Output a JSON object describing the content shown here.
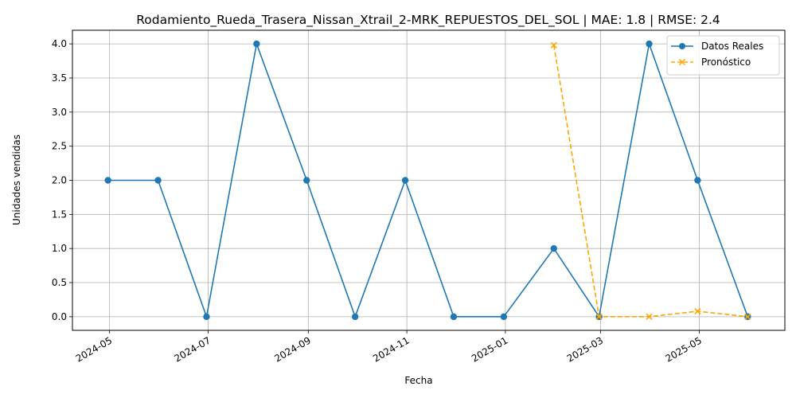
{
  "chart_data": {
    "type": "line",
    "title": "Rodamiento_Rueda_Trasera_Nissan_Xtrail_2-MRK_REPUESTOS_DEL_SOL | MAE: 1.8 | RMSE: 2.4",
    "xlabel": "Fecha",
    "ylabel": "Unidades vendidas",
    "ylim": [
      -0.2,
      4.2
    ],
    "yticks": [
      "0.0",
      "0.5",
      "1.0",
      "1.5",
      "2.0",
      "2.5",
      "3.0",
      "3.5",
      "4.0"
    ],
    "ytick_values": [
      0,
      0.5,
      1,
      1.5,
      2,
      2.5,
      3,
      3.5,
      4
    ],
    "xticks": [
      "2024-05",
      "2024-07",
      "2024-09",
      "2024-11",
      "2025-01",
      "2025-03",
      "2025-05"
    ],
    "xtick_dates": [
      "2024-05-01",
      "2024-07-01",
      "2024-09-01",
      "2024-11-01",
      "2025-01-01",
      "2025-03-01",
      "2025-05-01"
    ],
    "xlim": [
      "2024-04-08",
      "2025-06-23"
    ],
    "grid": true,
    "legend_position": "top-right",
    "series": [
      {
        "name": "Datos Reales",
        "color": "#1f77b4",
        "marker": "circle",
        "linestyle": "solid",
        "x": [
          "2024-04-30",
          "2024-05-31",
          "2024-06-30",
          "2024-07-31",
          "2024-08-31",
          "2024-09-30",
          "2024-10-31",
          "2024-11-30",
          "2024-12-31",
          "2025-01-31",
          "2025-02-28",
          "2025-03-31",
          "2025-04-30",
          "2025-05-31"
        ],
        "values": [
          2,
          2,
          0,
          4,
          2,
          0,
          2,
          0,
          0,
          1,
          0,
          4,
          2,
          0
        ]
      },
      {
        "name": "Pronóstico",
        "color": "#ffa500",
        "marker": "x",
        "linestyle": "dashed",
        "x": [
          "2025-01-31",
          "2025-02-28",
          "2025-03-31",
          "2025-04-30",
          "2025-05-31"
        ],
        "values": [
          3.98,
          0.0,
          0.0,
          0.08,
          0.0
        ]
      }
    ]
  }
}
